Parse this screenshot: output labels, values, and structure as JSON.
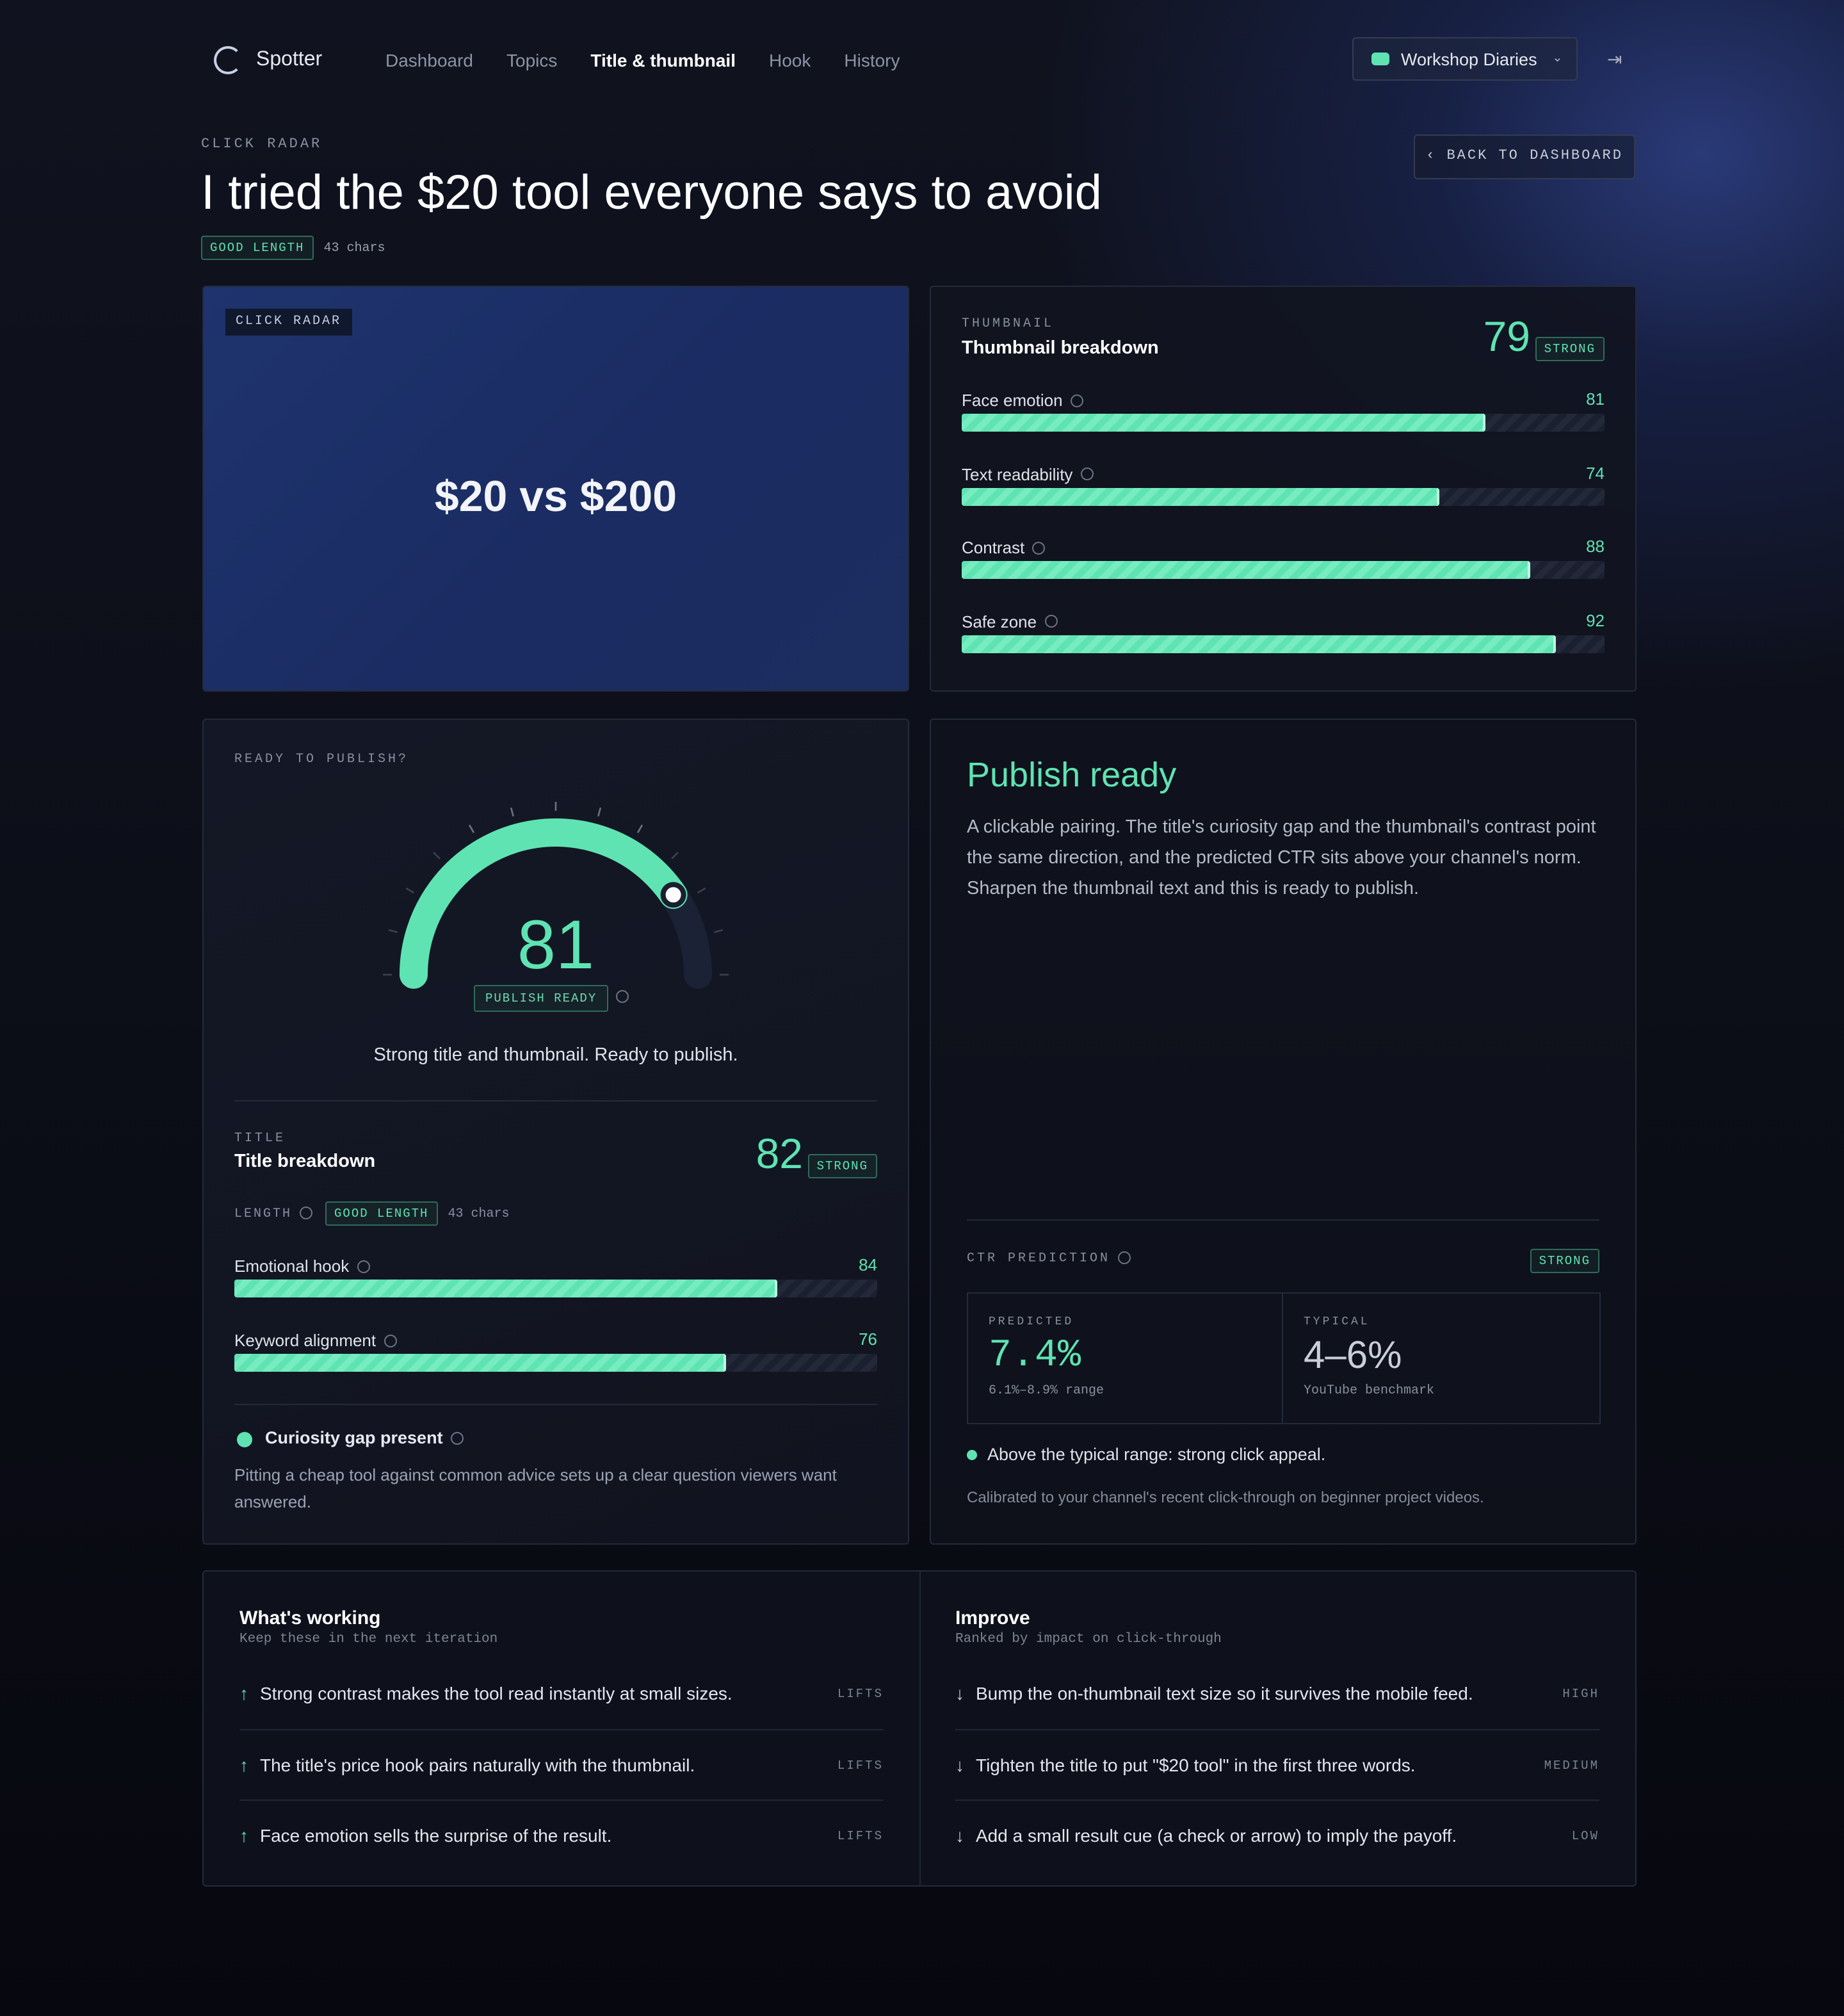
{
  "nav": {
    "brand": "Spotter",
    "links": [
      "Dashboard",
      "Topics",
      "Title & thumbnail",
      "Hook",
      "History"
    ],
    "channel": "Workshop Diaries"
  },
  "header": {
    "eyebrow": "CLICK RADAR",
    "title": "I tried the $20 tool everyone says to avoid",
    "badge": "GOOD LENGTH",
    "chars": "43 chars",
    "back": "BACK TO DASHBOARD"
  },
  "thumbnail_preview": {
    "tag": "CLICK RADAR",
    "text": "$20 vs $200"
  },
  "thumbnail_breakdown": {
    "eyebrow": "THUMBNAIL",
    "title": "Thumbnail breakdown",
    "score": 79,
    "badge": "STRONG",
    "metrics": [
      {
        "label": "Face emotion",
        "value": 81
      },
      {
        "label": "Text readability",
        "value": 74
      },
      {
        "label": "Contrast",
        "value": 88
      },
      {
        "label": "Safe zone",
        "value": 92
      }
    ]
  },
  "publish": {
    "eyebrow": "READY TO PUBLISH?",
    "score": 81,
    "badge": "PUBLISH READY",
    "summary": "Strong title and thumbnail. Ready to publish."
  },
  "title_breakdown": {
    "eyebrow": "TITLE",
    "title": "Title breakdown",
    "score": 82,
    "badge": "STRONG",
    "length_label": "LENGTH",
    "length_badge": "GOOD LENGTH",
    "length_chars": "43 chars",
    "metrics": [
      {
        "label": "Emotional hook",
        "value": 84
      },
      {
        "label": "Keyword alignment",
        "value": 76
      }
    ],
    "insight_title": "Curiosity gap present",
    "insight_text": "Pitting a cheap tool against common advice sets up a clear question viewers want answered."
  },
  "verdict": {
    "title": "Publish ready",
    "text": "A clickable pairing. The title's curiosity gap and the thumbnail's contrast point the same direction, and the predicted CTR sits above your channel's norm. Sharpen the thumbnail text and this is ready to publish."
  },
  "ctr": {
    "eyebrow": "CTR PREDICTION",
    "badge": "STRONG",
    "predicted_label": "PREDICTED",
    "predicted": "7.4%",
    "predicted_range": "6.1%–8.9% range",
    "typical_label": "TYPICAL",
    "typical": "4–6%",
    "typical_note": "YouTube benchmark",
    "note": "Above the typical range: strong click appeal.",
    "calibration": "Calibrated to your channel's recent click-through on beginner project videos."
  },
  "working": {
    "title": "What's working",
    "subtitle": "Keep these in the next iteration",
    "items": [
      {
        "text": "Strong contrast makes the tool read instantly at small sizes.",
        "tag": "LIFTS"
      },
      {
        "text": "The title's price hook pairs naturally with the thumbnail.",
        "tag": "LIFTS"
      },
      {
        "text": "Face emotion sells the surprise of the result.",
        "tag": "LIFTS"
      }
    ]
  },
  "improve": {
    "title": "Improve",
    "subtitle": "Ranked by impact on click-through",
    "items": [
      {
        "text": "Bump the on-thumbnail text size so it survives the mobile feed.",
        "tag": "HIGH"
      },
      {
        "text": "Tighten the title to put \"$20 tool\" in the first three words.",
        "tag": "MEDIUM"
      },
      {
        "text": "Add a small result cue (a check or arrow) to imply the payoff.",
        "tag": "LOW"
      }
    ]
  }
}
